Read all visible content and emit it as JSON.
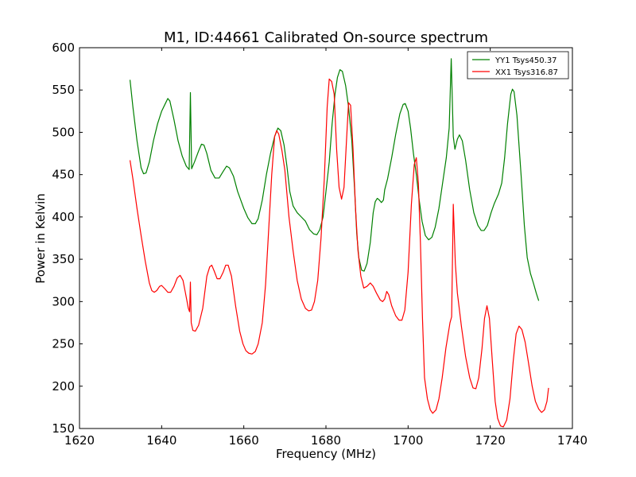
{
  "chart_data": {
    "type": "line",
    "title": "M1, ID:44661 Calibrated On-source spectrum",
    "xlabel": "Frequency (MHz)",
    "ylabel": "Power in Kelvin",
    "xlim": [
      1620,
      1740
    ],
    "ylim": [
      150,
      600
    ],
    "xticks": [
      1620,
      1640,
      1660,
      1680,
      1700,
      1720,
      1740
    ],
    "yticks": [
      150,
      200,
      250,
      300,
      350,
      400,
      450,
      500,
      550,
      600
    ],
    "grid": false,
    "legend_position": "top-right",
    "series": [
      {
        "name": "YY1 Tsys450.37",
        "color": "#008000",
        "points": [
          [
            1632.3,
            562
          ],
          [
            1633.0,
            530
          ],
          [
            1634.0,
            490
          ],
          [
            1635.0,
            458
          ],
          [
            1635.6,
            451
          ],
          [
            1636.2,
            452
          ],
          [
            1637.0,
            465
          ],
          [
            1638.0,
            490
          ],
          [
            1639.0,
            510
          ],
          [
            1640.0,
            525
          ],
          [
            1641.0,
            535
          ],
          [
            1641.5,
            540
          ],
          [
            1642.0,
            537
          ],
          [
            1643.0,
            515
          ],
          [
            1644.0,
            490
          ],
          [
            1645.0,
            472
          ],
          [
            1646.0,
            460
          ],
          [
            1646.7,
            456
          ],
          [
            1647.0,
            547
          ],
          [
            1647.3,
            457
          ],
          [
            1648.0,
            465
          ],
          [
            1649.0,
            478
          ],
          [
            1649.7,
            486
          ],
          [
            1650.3,
            485
          ],
          [
            1651.0,
            475
          ],
          [
            1652.0,
            455
          ],
          [
            1653.0,
            446
          ],
          [
            1654.0,
            446
          ],
          [
            1655.0,
            454
          ],
          [
            1655.8,
            460
          ],
          [
            1656.5,
            458
          ],
          [
            1657.5,
            448
          ],
          [
            1658.5,
            430
          ],
          [
            1660.0,
            410
          ],
          [
            1661.0,
            399
          ],
          [
            1662.0,
            392
          ],
          [
            1662.8,
            392
          ],
          [
            1663.5,
            398
          ],
          [
            1664.5,
            420
          ],
          [
            1665.5,
            450
          ],
          [
            1666.5,
            475
          ],
          [
            1667.5,
            495
          ],
          [
            1668.3,
            505
          ],
          [
            1669.0,
            502
          ],
          [
            1669.8,
            485
          ],
          [
            1670.5,
            460
          ],
          [
            1671.2,
            430
          ],
          [
            1672.0,
            413
          ],
          [
            1673.0,
            405
          ],
          [
            1674.0,
            400
          ],
          [
            1675.0,
            395
          ],
          [
            1676.0,
            385
          ],
          [
            1677.0,
            380
          ],
          [
            1677.8,
            379
          ],
          [
            1678.5,
            385
          ],
          [
            1679.3,
            400
          ],
          [
            1680.0,
            430
          ],
          [
            1680.8,
            465
          ],
          [
            1681.5,
            510
          ],
          [
            1682.2,
            545
          ],
          [
            1682.8,
            565
          ],
          [
            1683.4,
            574
          ],
          [
            1684.0,
            572
          ],
          [
            1684.8,
            555
          ],
          [
            1685.5,
            530
          ],
          [
            1686.3,
            490
          ],
          [
            1687.0,
            430
          ],
          [
            1687.5,
            380
          ],
          [
            1688.0,
            352
          ],
          [
            1688.7,
            337
          ],
          [
            1689.3,
            336
          ],
          [
            1690.0,
            345
          ],
          [
            1690.8,
            370
          ],
          [
            1691.5,
            405
          ],
          [
            1692.0,
            418
          ],
          [
            1692.5,
            422
          ],
          [
            1693.0,
            420
          ],
          [
            1693.5,
            417
          ],
          [
            1694.0,
            420
          ],
          [
            1694.3,
            432
          ],
          [
            1695.0,
            445
          ],
          [
            1696.0,
            470
          ],
          [
            1697.0,
            498
          ],
          [
            1698.0,
            522
          ],
          [
            1698.8,
            533
          ],
          [
            1699.3,
            534
          ],
          [
            1700.0,
            525
          ],
          [
            1700.6,
            505
          ],
          [
            1701.3,
            475
          ],
          [
            1702.0,
            450
          ],
          [
            1702.7,
            420
          ],
          [
            1703.4,
            395
          ],
          [
            1704.2,
            378
          ],
          [
            1705.0,
            373
          ],
          [
            1705.8,
            376
          ],
          [
            1706.6,
            388
          ],
          [
            1707.5,
            410
          ],
          [
            1708.4,
            440
          ],
          [
            1709.3,
            470
          ],
          [
            1710.0,
            505
          ],
          [
            1710.5,
            587
          ],
          [
            1711.0,
            495
          ],
          [
            1711.4,
            480
          ],
          [
            1712.0,
            492
          ],
          [
            1712.5,
            497
          ],
          [
            1713.2,
            490
          ],
          [
            1714.0,
            467
          ],
          [
            1715.0,
            432
          ],
          [
            1716.0,
            405
          ],
          [
            1717.0,
            390
          ],
          [
            1717.8,
            384
          ],
          [
            1718.5,
            384
          ],
          [
            1719.3,
            390
          ],
          [
            1720.2,
            405
          ],
          [
            1721.0,
            416
          ],
          [
            1722.0,
            427
          ],
          [
            1722.8,
            440
          ],
          [
            1723.5,
            470
          ],
          [
            1724.2,
            510
          ],
          [
            1725.0,
            545
          ],
          [
            1725.4,
            551
          ],
          [
            1725.8,
            548
          ],
          [
            1726.5,
            520
          ],
          [
            1727.5,
            450
          ],
          [
            1728.3,
            390
          ],
          [
            1729.0,
            352
          ],
          [
            1729.8,
            333
          ],
          [
            1730.5,
            322
          ],
          [
            1731.2,
            310
          ],
          [
            1731.8,
            301
          ]
        ]
      },
      {
        "name": "XX1 Tsys316.87",
        "color": "#ff0000",
        "points": [
          [
            1632.3,
            467
          ],
          [
            1633.0,
            445
          ],
          [
            1634.0,
            410
          ],
          [
            1635.0,
            378
          ],
          [
            1636.0,
            348
          ],
          [
            1637.0,
            322
          ],
          [
            1637.6,
            313
          ],
          [
            1638.2,
            311
          ],
          [
            1638.8,
            313
          ],
          [
            1639.5,
            318
          ],
          [
            1640.0,
            319
          ],
          [
            1640.8,
            315
          ],
          [
            1641.5,
            311
          ],
          [
            1642.2,
            311
          ],
          [
            1643.0,
            318
          ],
          [
            1643.8,
            328
          ],
          [
            1644.5,
            331
          ],
          [
            1645.2,
            325
          ],
          [
            1645.8,
            310
          ],
          [
            1646.5,
            292
          ],
          [
            1646.8,
            288
          ],
          [
            1647.0,
            323
          ],
          [
            1647.2,
            275
          ],
          [
            1647.6,
            266
          ],
          [
            1648.2,
            265
          ],
          [
            1649.0,
            272
          ],
          [
            1650.0,
            292
          ],
          [
            1651.0,
            330
          ],
          [
            1651.7,
            341
          ],
          [
            1652.2,
            343
          ],
          [
            1652.8,
            336
          ],
          [
            1653.5,
            327
          ],
          [
            1654.2,
            327
          ],
          [
            1655.0,
            335
          ],
          [
            1655.6,
            343
          ],
          [
            1656.2,
            343
          ],
          [
            1657.0,
            330
          ],
          [
            1658.0,
            295
          ],
          [
            1659.0,
            265
          ],
          [
            1659.8,
            250
          ],
          [
            1660.5,
            242
          ],
          [
            1661.2,
            239
          ],
          [
            1662.0,
            238
          ],
          [
            1662.8,
            241
          ],
          [
            1663.5,
            250
          ],
          [
            1664.5,
            275
          ],
          [
            1665.3,
            320
          ],
          [
            1666.0,
            380
          ],
          [
            1666.8,
            450
          ],
          [
            1667.5,
            495
          ],
          [
            1668.0,
            502
          ],
          [
            1668.5,
            498
          ],
          [
            1669.3,
            478
          ],
          [
            1670.0,
            455
          ],
          [
            1671.0,
            400
          ],
          [
            1672.0,
            360
          ],
          [
            1673.0,
            325
          ],
          [
            1674.0,
            303
          ],
          [
            1675.0,
            292
          ],
          [
            1675.8,
            289
          ],
          [
            1676.5,
            290
          ],
          [
            1677.2,
            300
          ],
          [
            1678.0,
            325
          ],
          [
            1678.8,
            375
          ],
          [
            1679.6,
            445
          ],
          [
            1680.3,
            530
          ],
          [
            1680.8,
            563
          ],
          [
            1681.4,
            560
          ],
          [
            1682.0,
            545
          ],
          [
            1682.6,
            480
          ],
          [
            1683.2,
            435
          ],
          [
            1683.8,
            421
          ],
          [
            1684.4,
            435
          ],
          [
            1685.0,
            490
          ],
          [
            1685.5,
            535
          ],
          [
            1686.0,
            532
          ],
          [
            1686.6,
            480
          ],
          [
            1687.2,
            410
          ],
          [
            1687.8,
            360
          ],
          [
            1688.5,
            330
          ],
          [
            1689.2,
            316
          ],
          [
            1690.0,
            318
          ],
          [
            1690.8,
            322
          ],
          [
            1691.5,
            318
          ],
          [
            1692.3,
            310
          ],
          [
            1693.2,
            302
          ],
          [
            1693.8,
            300
          ],
          [
            1694.3,
            303
          ],
          [
            1694.8,
            312
          ],
          [
            1695.3,
            308
          ],
          [
            1696.0,
            295
          ],
          [
            1697.0,
            283
          ],
          [
            1697.8,
            278
          ],
          [
            1698.5,
            278
          ],
          [
            1699.2,
            290
          ],
          [
            1700.0,
            335
          ],
          [
            1700.8,
            415
          ],
          [
            1701.5,
            462
          ],
          [
            1702.0,
            470
          ],
          [
            1702.5,
            440
          ],
          [
            1703.0,
            370
          ],
          [
            1703.5,
            280
          ],
          [
            1704.0,
            210
          ],
          [
            1704.7,
            185
          ],
          [
            1705.4,
            172
          ],
          [
            1706.0,
            168
          ],
          [
            1706.8,
            172
          ],
          [
            1707.5,
            185
          ],
          [
            1708.3,
            210
          ],
          [
            1709.2,
            245
          ],
          [
            1710.2,
            275
          ],
          [
            1710.6,
            282
          ],
          [
            1711.0,
            415
          ],
          [
            1711.5,
            345
          ],
          [
            1712.0,
            310
          ],
          [
            1713.0,
            270
          ],
          [
            1714.0,
            235
          ],
          [
            1715.0,
            210
          ],
          [
            1715.8,
            198
          ],
          [
            1716.5,
            197
          ],
          [
            1717.2,
            210
          ],
          [
            1718.0,
            245
          ],
          [
            1718.6,
            280
          ],
          [
            1719.2,
            295
          ],
          [
            1719.8,
            280
          ],
          [
            1720.5,
            230
          ],
          [
            1721.2,
            182
          ],
          [
            1721.8,
            162
          ],
          [
            1722.5,
            153
          ],
          [
            1723.2,
            152
          ],
          [
            1724.0,
            160
          ],
          [
            1724.8,
            185
          ],
          [
            1725.6,
            230
          ],
          [
            1726.3,
            262
          ],
          [
            1727.0,
            271
          ],
          [
            1727.7,
            267
          ],
          [
            1728.5,
            252
          ],
          [
            1729.3,
            228
          ],
          [
            1730.2,
            200
          ],
          [
            1731.0,
            182
          ],
          [
            1731.8,
            173
          ],
          [
            1732.5,
            169
          ],
          [
            1733.2,
            172
          ],
          [
            1733.8,
            182
          ],
          [
            1734.2,
            198
          ]
        ]
      }
    ]
  }
}
